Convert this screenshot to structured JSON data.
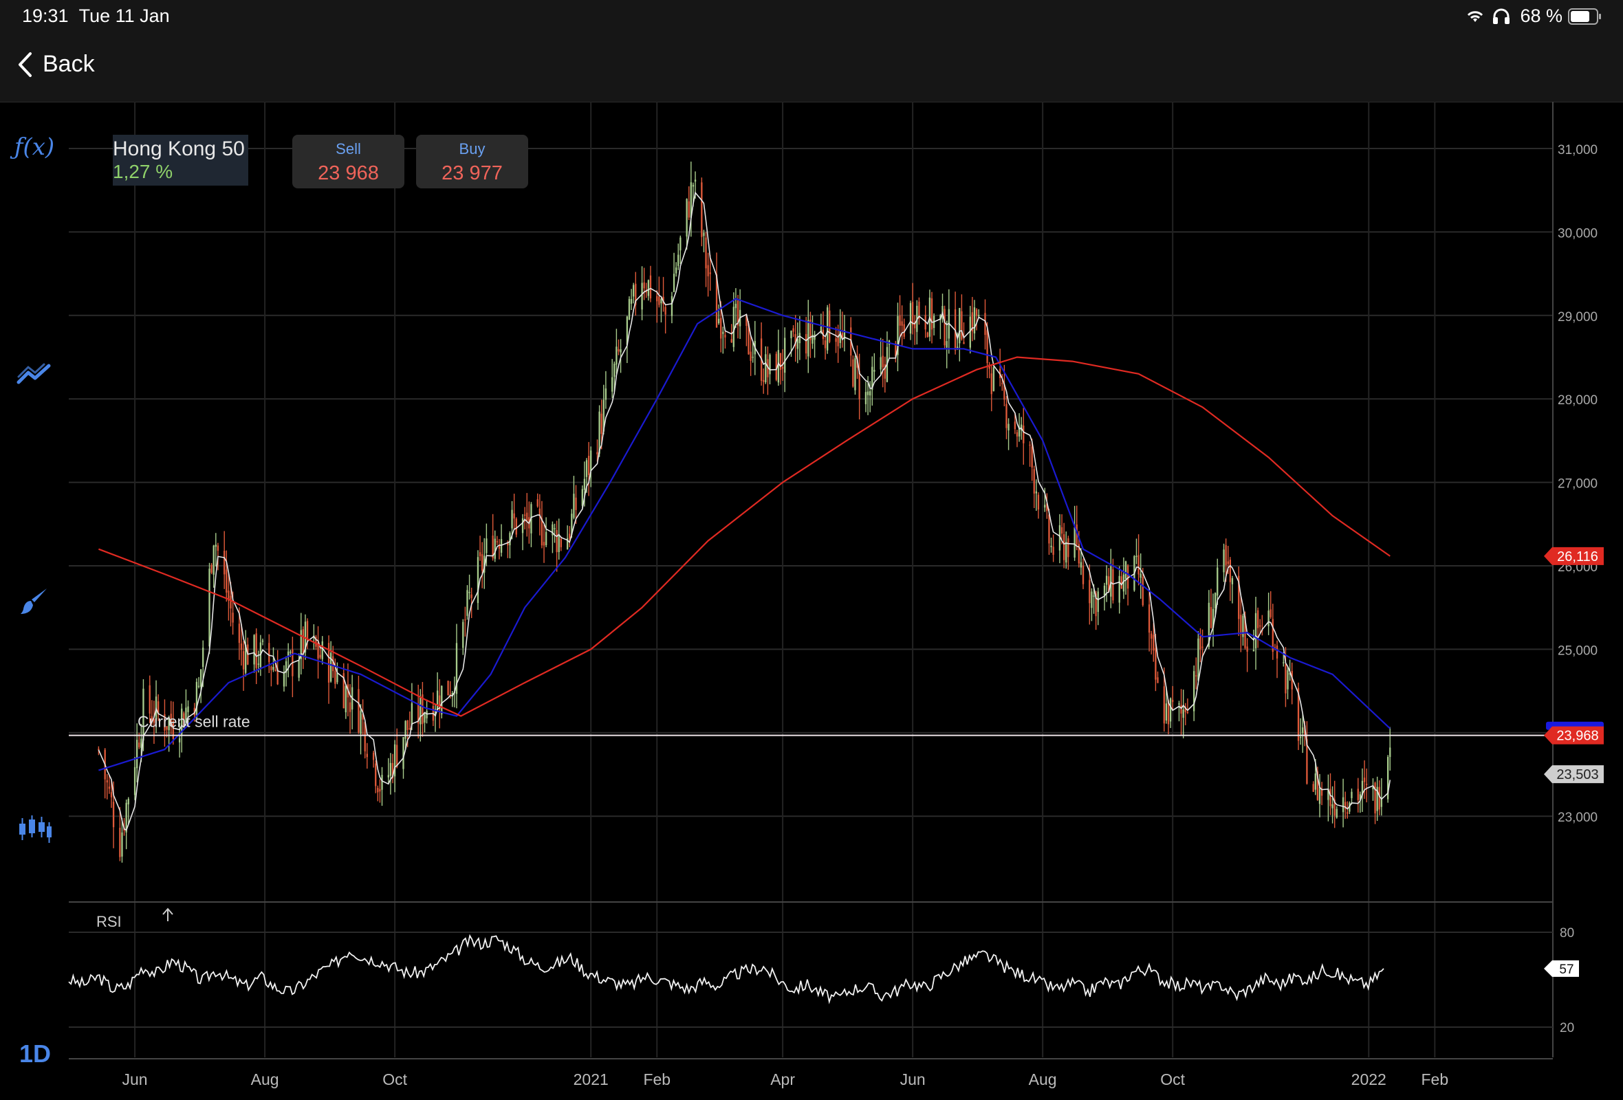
{
  "status_bar": {
    "time": "19:31",
    "date": "Tue 11 Jan",
    "battery": "68 %"
  },
  "nav": {
    "back_label": "Back"
  },
  "toolbar": {
    "fx_label": "ƒ(x)",
    "timeframe": "1D",
    "icons": [
      "function-icon",
      "trend-icon",
      "brush-icon",
      "candles-icon"
    ]
  },
  "instrument": {
    "name": "Hong Kong 50",
    "change": "1,27 %"
  },
  "quotes": {
    "sell_label": "Sell",
    "sell_value": "23 968",
    "buy_label": "Buy",
    "buy_value": "23 977"
  },
  "colors": {
    "up": "#a8cc8c",
    "down": "#e05a3a",
    "ma_fast": "#1a1ad0",
    "ma_slow": "#e02a22",
    "accent": "#4a86e8"
  },
  "chart_data": {
    "type": "candlestick",
    "x_ticks": [
      "Jun",
      "Aug",
      "Oct",
      "2021",
      "Feb",
      "Apr",
      "Jun",
      "Aug",
      "Oct",
      "2022",
      "Feb"
    ],
    "y_ticks": [
      "31,000",
      "30,000",
      "29,000",
      "28,000",
      "27,000",
      "26,000",
      "25,000",
      "23,000"
    ],
    "ylim": [
      22000,
      31200
    ],
    "current_sell_label": "Current sell rate",
    "current_sell": 23968,
    "price_label_sell": "23,968",
    "price_label_ma_slow": "26,116",
    "price_label_low": "23,503",
    "ma_slow_last": 26116,
    "low_last": 23503,
    "series": {
      "close_path": [
        [
          "2020-05-15",
          23800
        ],
        [
          "2020-05-25",
          22700
        ],
        [
          "2020-06-05",
          24300
        ],
        [
          "2020-06-20",
          24100
        ],
        [
          "2020-07-01",
          24500
        ],
        [
          "2020-07-08",
          26400
        ],
        [
          "2020-07-20",
          25000
        ],
        [
          "2020-08-01",
          24900
        ],
        [
          "2020-08-10",
          24700
        ],
        [
          "2020-08-20",
          25100
        ],
        [
          "2020-09-01",
          24800
        ],
        [
          "2020-09-15",
          24200
        ],
        [
          "2020-09-25",
          23300
        ],
        [
          "2020-10-05",
          24000
        ],
        [
          "2020-10-15",
          24300
        ],
        [
          "2020-10-28",
          24600
        ],
        [
          "2020-11-05",
          25600
        ],
        [
          "2020-11-15",
          26300
        ],
        [
          "2020-11-25",
          26500
        ],
        [
          "2020-12-05",
          26500
        ],
        [
          "2020-12-20",
          26300
        ],
        [
          "2020-12-31",
          27200
        ],
        [
          "2021-01-15",
          28600
        ],
        [
          "2021-01-25",
          29500
        ],
        [
          "2021-02-05",
          29000
        ],
        [
          "2021-02-18",
          30600
        ],
        [
          "2021-02-28",
          29000
        ],
        [
          "2021-03-10",
          28900
        ],
        [
          "2021-03-25",
          28300
        ],
        [
          "2021-04-10",
          28700
        ],
        [
          "2021-04-25",
          28900
        ],
        [
          "2021-05-10",
          28000
        ],
        [
          "2021-05-20",
          28500
        ],
        [
          "2021-06-01",
          29100
        ],
        [
          "2021-06-20",
          28800
        ],
        [
          "2021-07-01",
          29000
        ],
        [
          "2021-07-10",
          28100
        ],
        [
          "2021-07-25",
          27400
        ],
        [
          "2021-08-05",
          26200
        ],
        [
          "2021-08-15",
          26300
        ],
        [
          "2021-08-25",
          25600
        ],
        [
          "2021-09-05",
          25800
        ],
        [
          "2021-09-15",
          25900
        ],
        [
          "2021-09-25",
          24300
        ],
        [
          "2021-10-05",
          24200
        ],
        [
          "2021-10-15",
          25100
        ],
        [
          "2021-10-25",
          26000
        ],
        [
          "2021-11-05",
          25100
        ],
        [
          "2021-11-15",
          25400
        ],
        [
          "2021-11-25",
          24500
        ],
        [
          "2021-12-05",
          23400
        ],
        [
          "2021-12-15",
          23200
        ],
        [
          "2021-12-25",
          23300
        ],
        [
          "2022-01-05",
          23200
        ],
        [
          "2022-01-11",
          23968
        ]
      ],
      "ma_fast": [
        [
          "2020-05-15",
          23550
        ],
        [
          "2020-06-15",
          23800
        ],
        [
          "2020-07-15",
          24600
        ],
        [
          "2020-08-15",
          24950
        ],
        [
          "2020-09-15",
          24700
        ],
        [
          "2020-10-15",
          24300
        ],
        [
          "2020-10-30",
          24200
        ],
        [
          "2020-11-15",
          24700
        ],
        [
          "2020-12-01",
          25500
        ],
        [
          "2020-12-20",
          26100
        ],
        [
          "2021-01-10",
          27000
        ],
        [
          "2021-02-01",
          28000
        ],
        [
          "2021-02-20",
          28900
        ],
        [
          "2021-03-10",
          29200
        ],
        [
          "2021-04-01",
          29000
        ],
        [
          "2021-05-01",
          28800
        ],
        [
          "2021-06-01",
          28600
        ],
        [
          "2021-06-25",
          28600
        ],
        [
          "2021-07-10",
          28500
        ],
        [
          "2021-08-01",
          27500
        ],
        [
          "2021-08-20",
          26200
        ],
        [
          "2021-09-10",
          25900
        ],
        [
          "2021-09-25",
          25600
        ],
        [
          "2021-10-15",
          25150
        ],
        [
          "2021-11-05",
          25200
        ],
        [
          "2021-11-25",
          24900
        ],
        [
          "2021-12-15",
          24700
        ],
        [
          "2022-01-11",
          24050
        ]
      ],
      "ma_slow": [
        [
          "2020-05-15",
          26200
        ],
        [
          "2020-06-15",
          25900
        ],
        [
          "2020-07-15",
          25600
        ],
        [
          "2020-08-15",
          25200
        ],
        [
          "2020-09-15",
          24800
        ],
        [
          "2020-10-15",
          24400
        ],
        [
          "2020-11-01",
          24200
        ],
        [
          "2020-12-01",
          24600
        ],
        [
          "2021-01-01",
          25000
        ],
        [
          "2021-01-25",
          25500
        ],
        [
          "2021-02-25",
          26300
        ],
        [
          "2021-04-01",
          27000
        ],
        [
          "2021-05-01",
          27500
        ],
        [
          "2021-06-01",
          28000
        ],
        [
          "2021-07-01",
          28350
        ],
        [
          "2021-07-20",
          28500
        ],
        [
          "2021-08-15",
          28450
        ],
        [
          "2021-09-15",
          28300
        ],
        [
          "2021-10-15",
          27900
        ],
        [
          "2021-11-15",
          27300
        ],
        [
          "2021-12-15",
          26600
        ],
        [
          "2022-01-11",
          26116
        ]
      ]
    },
    "rsi": {
      "label": "RSI",
      "y_ticks": [
        "80",
        "20"
      ],
      "last_label": "57",
      "last": 57,
      "points": [
        50,
        47,
        52,
        44,
        46,
        58,
        54,
        62,
        57,
        49,
        56,
        50,
        46,
        52,
        45,
        42,
        48,
        55,
        60,
        69,
        64,
        62,
        58,
        54,
        55,
        60,
        66,
        74,
        73,
        76,
        70,
        62,
        58,
        60,
        64,
        55,
        51,
        48,
        46,
        52,
        50,
        47,
        44,
        49,
        46,
        53,
        56,
        58,
        50,
        44,
        47,
        41,
        38,
        44,
        46,
        40,
        43,
        48,
        45,
        52,
        58,
        63,
        66,
        60,
        55,
        52,
        47,
        44,
        48,
        42,
        49,
        46,
        55,
        57,
        50,
        46,
        48,
        44,
        47,
        40,
        45,
        51,
        47,
        52,
        50,
        57,
        53,
        49,
        47,
        57
      ]
    }
  }
}
